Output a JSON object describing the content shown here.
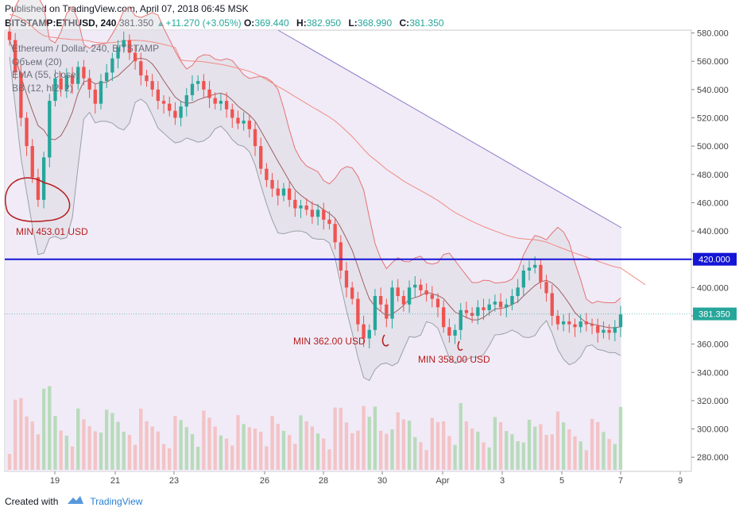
{
  "header": {
    "published": "Published on TradingView.com, April 07, 2018 06:45 MSK",
    "symbol": "BITSTAMP:ETHUSD, 240",
    "price": "381.350",
    "change": "+11.270 (+3.05%)",
    "open_label": "O:",
    "open": "369.440",
    "high_label": "H:",
    "high": "382.950",
    "low_label": "L:",
    "low": "368.990",
    "close_label": "C:",
    "close": "381.350"
  },
  "legend": {
    "title": "Ethereum / Dollar, 240, BITSTAMP",
    "volume": "Объем (20)",
    "ema": "EMA (55, close)",
    "bb": "BB (12, hl2, 2)"
  },
  "footer": {
    "created_with": "Created with",
    "brand": "TradingView"
  },
  "colors": {
    "up": "#26a69a",
    "down": "#ef5350",
    "hline": "#1515d6",
    "annotation": "#b71c1c",
    "trend_fill": "#ede7f6",
    "trend_line": "#8c7ac8"
  },
  "chart_data": {
    "type": "candlestick",
    "y_axis": {
      "min": 270,
      "max": 582,
      "ticks": [
        "580.000",
        "560.000",
        "540.000",
        "520.000",
        "500.000",
        "480.000",
        "460.000",
        "440.000",
        "420.000",
        "400.000",
        "380.000",
        "360.000",
        "340.000",
        "320.000",
        "300.000",
        "280.000"
      ]
    },
    "x_axis": {
      "ticks": [
        "19",
        "21",
        "23",
        "26",
        "28",
        "30",
        "Apr",
        "3",
        "5",
        "7",
        "9"
      ]
    },
    "horizontal_line": {
      "value": 420.0,
      "label": "420.000"
    },
    "last_price": {
      "value": 381.35,
      "label": "381.350"
    },
    "annotations": [
      {
        "text": "MIN 453.01 USD",
        "value": 453.01
      },
      {
        "text": "MIN 362.00 USD",
        "value": 362.0
      },
      {
        "text": "MIN 358.00 USD",
        "value": 358.0
      }
    ],
    "closes": [
      575,
      552,
      520,
      500,
      478,
      462,
      492,
      532,
      548,
      540,
      550,
      544,
      556,
      548,
      540,
      530,
      546,
      552,
      562,
      570,
      575,
      566,
      560,
      550,
      546,
      540,
      532,
      530,
      525,
      520,
      528,
      536,
      544,
      546,
      540,
      534,
      530,
      532,
      526,
      520,
      516,
      518,
      512,
      500,
      484,
      476,
      470,
      465,
      470,
      462,
      456,
      458,
      455,
      450,
      455,
      448,
      445,
      432,
      412,
      400,
      392,
      374,
      364,
      370,
      394,
      388,
      378,
      400,
      394,
      388,
      400,
      402,
      398,
      395,
      392,
      386,
      372,
      366,
      370,
      384,
      382,
      380,
      386,
      384,
      388,
      390,
      386,
      388,
      394,
      400,
      412,
      414,
      416,
      404,
      396,
      380,
      374,
      376,
      374,
      372,
      376,
      374,
      373,
      368,
      370,
      368,
      372,
      381
    ],
    "volume_scale_max": 60
  }
}
